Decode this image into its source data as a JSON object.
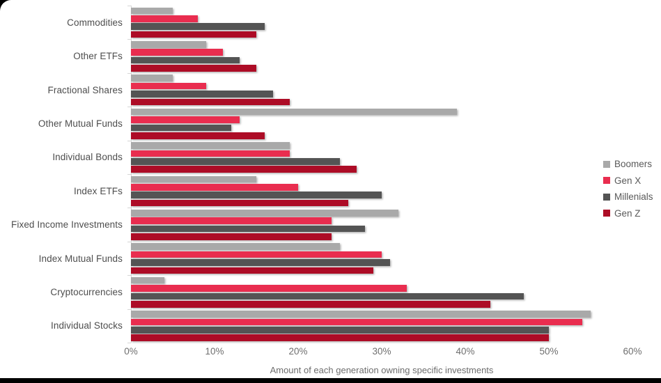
{
  "chart_data": {
    "type": "bar",
    "orientation": "horizontal",
    "xlabel": "Amount of each generation owning specific investments",
    "x_ticks": [
      "0%",
      "10%",
      "20%",
      "30%",
      "40%",
      "50%",
      "60%"
    ],
    "x_max": 60,
    "grid": false,
    "legend_position": "right",
    "categories": [
      "Commodities",
      "Other ETFs",
      "Fractional Shares",
      "Other Mutual Funds",
      "Individual Bonds",
      "Index ETFs",
      "Fixed Income Investments",
      "Index Mutual Funds",
      "Cryptocurrencies",
      "Individual Stocks"
    ],
    "series": [
      {
        "name": "Boomers",
        "color": "#a9a9a9",
        "values": [
          5,
          9,
          5,
          39,
          19,
          15,
          32,
          25,
          4,
          55
        ]
      },
      {
        "name": "Gen X",
        "color": "#e92d4f",
        "values": [
          8,
          11,
          9,
          13,
          19,
          20,
          24,
          30,
          33,
          54
        ]
      },
      {
        "name": "Millenials",
        "color": "#545454",
        "values": [
          16,
          13,
          17,
          12,
          25,
          30,
          28,
          31,
          47,
          50
        ]
      },
      {
        "name": "Gen Z",
        "color": "#ad0c26",
        "values": [
          15,
          15,
          19,
          16,
          27,
          26,
          24,
          29,
          43,
          50
        ]
      }
    ]
  }
}
